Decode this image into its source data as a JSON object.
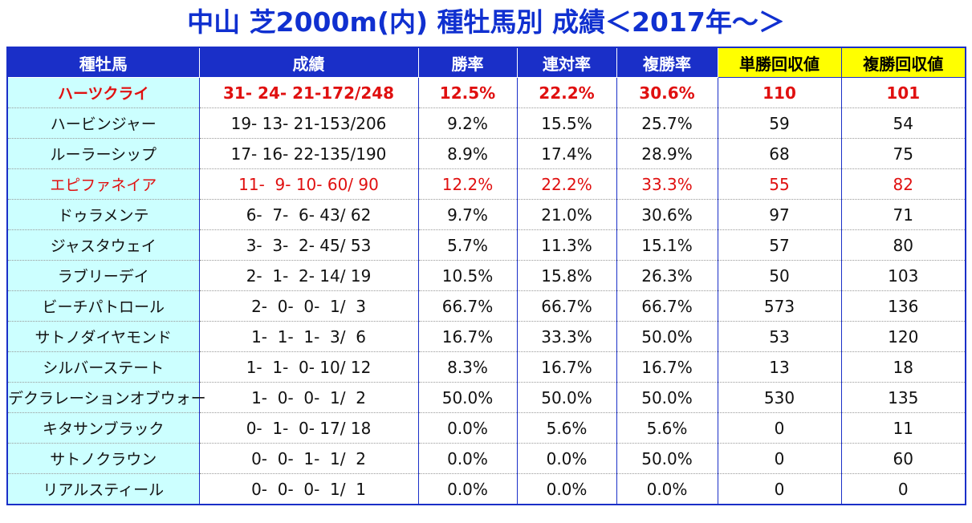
{
  "title": "中山 芝2000m(内) 種牡馬別 成績＜2017年～＞",
  "table": {
    "header": [
      "種牡馬",
      "成績",
      "勝率",
      "連対率",
      "複勝率",
      "単勝回収値",
      "複勝回収値"
    ],
    "rows": [
      [
        "ハーツクライ",
        "31- 24- 21-172/248",
        "12.5%",
        "22.2%",
        "30.6%",
        "110",
        "101"
      ],
      [
        "ハービンジャー",
        "19- 13- 21-153/206",
        "9.2%",
        "15.5%",
        "25.7%",
        "59",
        "54"
      ],
      [
        "ルーラーシップ",
        "17- 16- 22-135/190",
        "8.9%",
        "17.4%",
        "28.9%",
        "68",
        "75"
      ],
      [
        "エピファネイア",
        "11-  9- 10- 60/ 90",
        "12.2%",
        "22.2%",
        "33.3%",
        "55",
        "82"
      ],
      [
        "ドゥラメンテ",
        "6-  7-  6- 43/ 62",
        "9.7%",
        "21.0%",
        "30.6%",
        "97",
        "71"
      ],
      [
        "ジャスタウェイ",
        "3-  3-  2- 45/ 53",
        "5.7%",
        "11.3%",
        "15.1%",
        "57",
        "80"
      ],
      [
        "ラブリーデイ",
        "2-  1-  2- 14/ 19",
        "10.5%",
        "15.8%",
        "26.3%",
        "50",
        "103"
      ],
      [
        "ビーチパトロール",
        "2-  0-  0-  1/  3",
        "66.7%",
        "66.7%",
        "66.7%",
        "573",
        "136"
      ],
      [
        "サトノダイヤモンド",
        "1-  1-  1-  3/  6",
        "16.7%",
        "33.3%",
        "50.0%",
        "53",
        "120"
      ],
      [
        "シルバーステート",
        "1-  1-  0- 10/ 12",
        "8.3%",
        "16.7%",
        "16.7%",
        "13",
        "18"
      ],
      [
        "デクラレーションオブウォー",
        "1-  0-  0-  1/  2",
        "50.0%",
        "50.0%",
        "50.0%",
        "530",
        "135"
      ],
      [
        "キタサンブラック",
        "0-  1-  0- 17/ 18",
        "0.0%",
        "5.6%",
        "5.6%",
        "0",
        "11"
      ],
      [
        "サトノクラウン",
        "0-  0-  1-  1/  2",
        "0.0%",
        "0.0%",
        "50.0%",
        "0",
        "60"
      ],
      [
        "リアルスティール",
        "0-  0-  0-  1/  1",
        "0.0%",
        "0.0%",
        "0.0%",
        "0",
        "0"
      ]
    ]
  }
}
